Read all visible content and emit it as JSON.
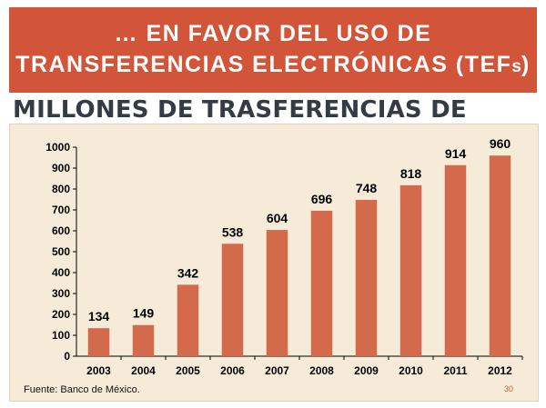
{
  "slide": {
    "title_line1": "… EN FAVOR DEL USO DE",
    "title_line2_main": "TRANSFERENCIAS ELECTRÓNICAS (TEF",
    "title_line2_small": "s",
    "title_line2_end": ")",
    "subtitle": "MILLONES DE TRASFERENCIAS DE FONDOS",
    "source": "Fuente: Banco de México.",
    "page_number": "30",
    "colors": {
      "banner": "#d2553a",
      "bar": "#d46a4c",
      "panel": "#f6ebd9",
      "subtitle": "#333b45"
    }
  },
  "chart_data": {
    "type": "bar",
    "title": "MILLONES DE TRASFERENCIAS DE FONDOS",
    "xlabel": "",
    "ylabel": "",
    "categories": [
      "2003",
      "2004",
      "2005",
      "2006",
      "2007",
      "2008",
      "2009",
      "2010",
      "2011",
      "2012"
    ],
    "values": [
      134,
      149,
      342,
      538,
      604,
      696,
      748,
      818,
      914,
      960
    ],
    "ylim": [
      0,
      1000
    ],
    "yticks": [
      0,
      100,
      200,
      300,
      400,
      500,
      600,
      700,
      800,
      900,
      1000
    ],
    "data_labels": true,
    "grid": false,
    "legend": "none"
  }
}
